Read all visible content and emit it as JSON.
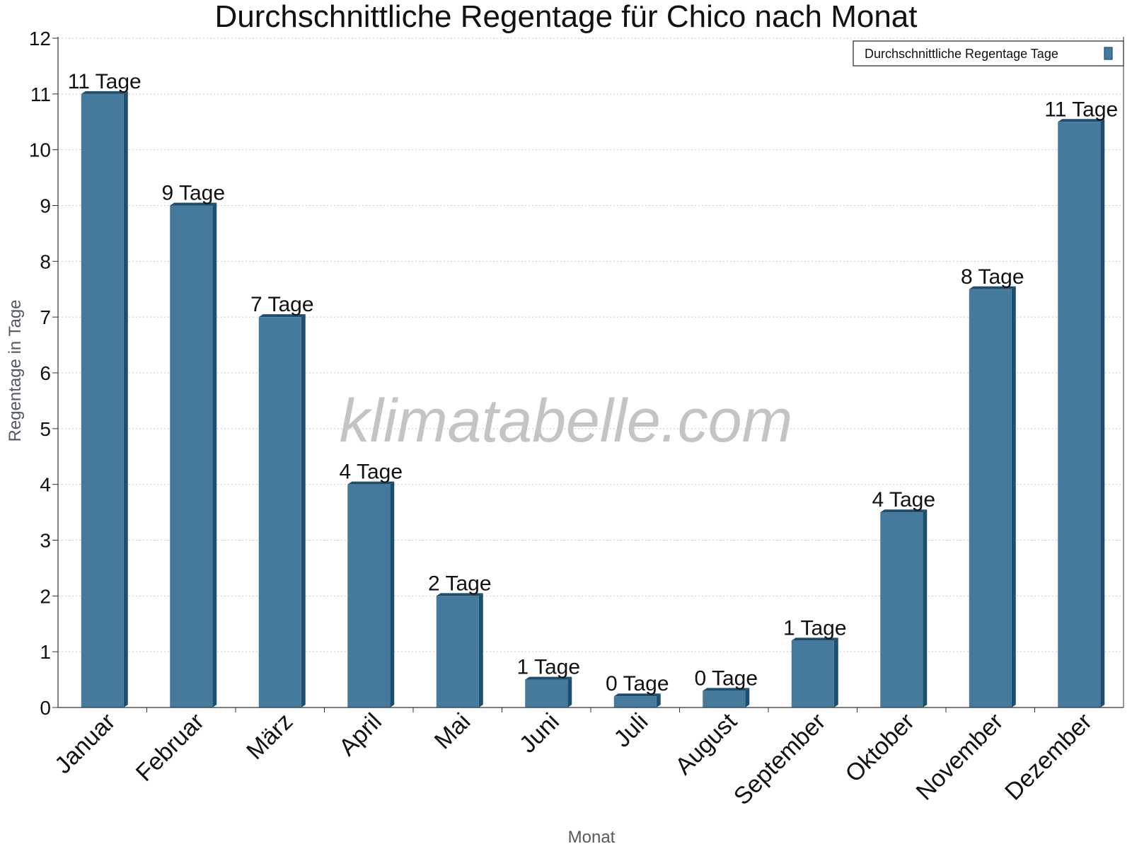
{
  "chart_data": {
    "type": "bar",
    "title": "Durchschnittliche Regentage für Chico nach Monat",
    "xlabel": "Monat",
    "ylabel": "Regentage in Tage",
    "ylim": [
      0,
      12
    ],
    "yticks": [
      0,
      1,
      2,
      3,
      4,
      5,
      6,
      7,
      8,
      9,
      10,
      11,
      12
    ],
    "grid": true,
    "legend_position": "top-right",
    "categories": [
      "Januar",
      "Februar",
      "März",
      "April",
      "Mai",
      "Juni",
      "Juli",
      "August",
      "September",
      "Oktober",
      "November",
      "Dezember"
    ],
    "series": [
      {
        "name": "Durchschnittliche Regentage Tage",
        "color": "#467a9c",
        "values": [
          11,
          9,
          7,
          4,
          2,
          0.5,
          0.2,
          0.3,
          1.2,
          3.5,
          7.5,
          10.5
        ],
        "labels": [
          "11 Tage",
          "9 Tage",
          "7 Tage",
          "4 Tage",
          "2 Tage",
          "1 Tage",
          "0 Tage",
          "0 Tage",
          "1 Tage",
          "4 Tage",
          "8 Tage",
          "11 Tage"
        ]
      }
    ]
  },
  "watermark": "klimatabelle.com",
  "colors": {
    "bar": "#467a9c",
    "bar_side": "#1e4e6e",
    "grid": "#c8c8c8"
  }
}
